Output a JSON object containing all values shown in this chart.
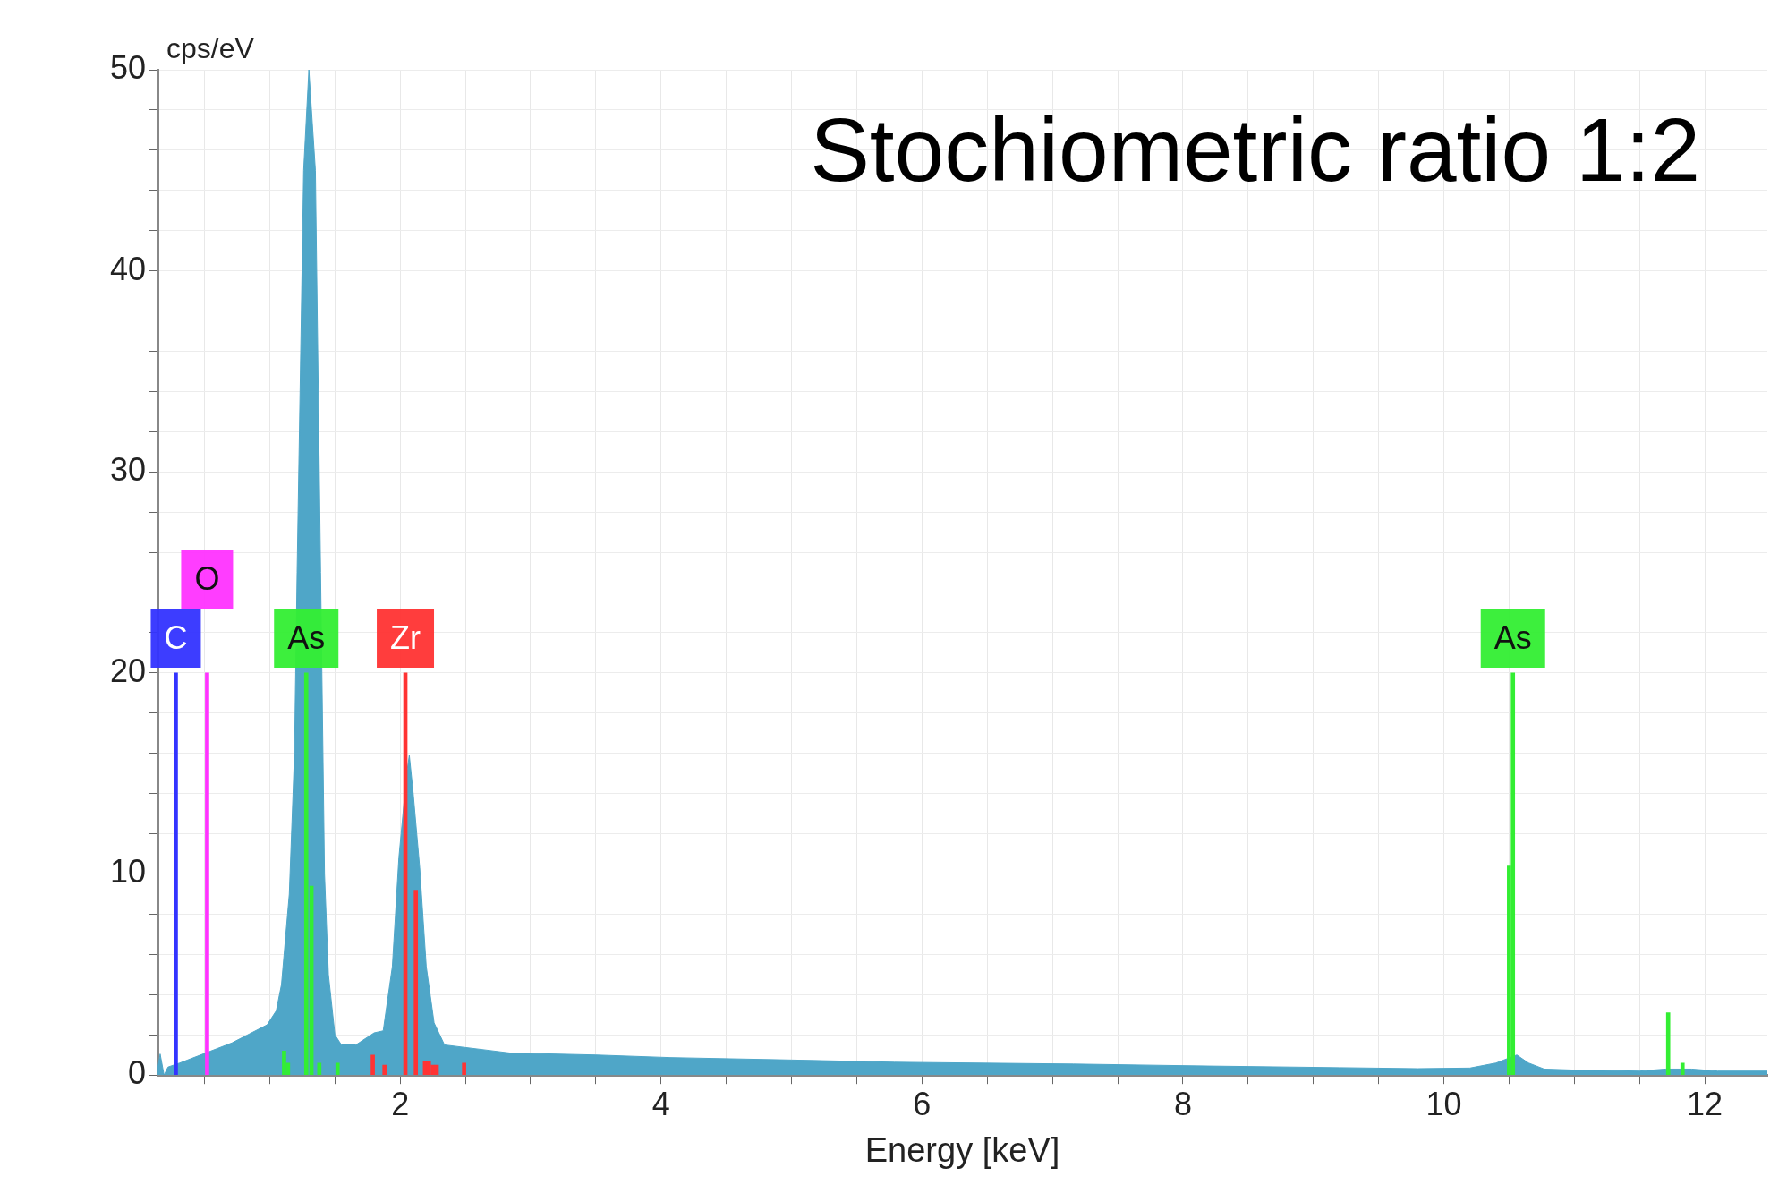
{
  "chart_data": {
    "type": "area",
    "title": "Stochiometric ratio 1:2",
    "xlabel": "Energy [keV]",
    "ylabel": "cps/eV",
    "xlim": [
      0.14,
      12.48
    ],
    "ylim": [
      0,
      50
    ],
    "xticks": [
      {
        "value": 0.5,
        "label": null
      },
      {
        "value": 1,
        "label": null
      },
      {
        "value": 1.5,
        "label": null
      },
      2,
      {
        "value": 2.5,
        "label": null
      },
      {
        "value": 3,
        "label": null
      },
      {
        "value": 3.5,
        "label": null
      },
      4,
      {
        "value": 4.5,
        "label": null
      },
      {
        "value": 5,
        "label": null
      },
      {
        "value": 5.5,
        "label": null
      },
      6,
      {
        "value": 6.5,
        "label": null
      },
      {
        "value": 7,
        "label": null
      },
      {
        "value": 7.5,
        "label": null
      },
      8,
      {
        "value": 8.5,
        "label": null
      },
      {
        "value": 9,
        "label": null
      },
      {
        "value": 9.5,
        "label": null
      },
      10,
      {
        "value": 10.5,
        "label": null
      },
      {
        "value": 11,
        "label": null
      },
      {
        "value": 11.5,
        "label": null
      },
      12
    ],
    "yticks": [
      0,
      {
        "value": 2,
        "label": null
      },
      {
        "value": 4,
        "label": null
      },
      {
        "value": 6,
        "label": null
      },
      {
        "value": 8,
        "label": null
      },
      10,
      {
        "value": 12,
        "label": null
      },
      {
        "value": 14,
        "label": null
      },
      {
        "value": 16,
        "label": null
      },
      {
        "value": 18,
        "label": null
      },
      20,
      {
        "value": 22,
        "label": null
      },
      {
        "value": 24,
        "label": null
      },
      {
        "value": 26,
        "label": null
      },
      {
        "value": 28,
        "label": null
      },
      30,
      {
        "value": 32,
        "label": null
      },
      {
        "value": 34,
        "label": null
      },
      {
        "value": 36,
        "label": null
      },
      {
        "value": 38,
        "label": null
      },
      40,
      {
        "value": 42,
        "label": null
      },
      {
        "value": 44,
        "label": null
      },
      {
        "value": 46,
        "label": null
      },
      {
        "value": 48,
        "label": null
      },
      50
    ],
    "grid": true,
    "legend": false,
    "series": [
      {
        "color": "#4fa6c8",
        "x": [
          0.14,
          0.16,
          0.19,
          0.22,
          0.31,
          0.49,
          0.71,
          0.98,
          1.05,
          1.09,
          1.15,
          1.19,
          1.21,
          1.26,
          1.3,
          1.35,
          1.39,
          1.42,
          1.45,
          1.5,
          1.55,
          1.66,
          1.8,
          1.87,
          1.94,
          1.99,
          2.05,
          2.07,
          2.1,
          2.15,
          2.2,
          2.26,
          2.34,
          2.84,
          3.5,
          4.07,
          5.0,
          5.79,
          7.16,
          8.2,
          9.2,
          9.8,
          10.2,
          10.4,
          10.56,
          10.65,
          10.77,
          11.0,
          11.5,
          11.7,
          11.9,
          12.1,
          12.48
        ],
        "values": [
          0.3,
          1.05,
          0,
          0.4,
          0.6,
          1.05,
          1.6,
          2.5,
          3.2,
          4.5,
          9,
          16,
          25,
          45,
          50,
          45,
          25,
          10,
          5,
          2,
          1.5,
          1.5,
          2.1,
          2.2,
          5.4,
          10.8,
          15,
          15.9,
          14,
          10.3,
          5.4,
          2.6,
          1.5,
          1.1,
          1.0,
          0.87,
          0.75,
          0.64,
          0.55,
          0.45,
          0.37,
          0.32,
          0.35,
          0.6,
          1.0,
          0.6,
          0.3,
          0.25,
          0.2,
          0.3,
          0.3,
          0.2,
          0.2
        ]
      },
      {
        "type": "bar",
        "color": "#3333ff",
        "x": [
          0.28
        ],
        "values": [
          20
        ]
      },
      {
        "type": "bar",
        "color": "#ff33ff",
        "x": [
          0.52
        ],
        "values": [
          20
        ]
      },
      {
        "type": "bar",
        "color": "#33ee33",
        "x": [
          1.11,
          1.14,
          1.28,
          1.32,
          1.38,
          1.52,
          10.5,
          10.53,
          11.72,
          11.83
        ],
        "values": [
          1.2,
          0.6,
          20,
          9.4,
          0.6,
          0.6,
          10.4,
          20,
          3.1,
          0.6
        ]
      },
      {
        "type": "bar",
        "color": "#ff3333",
        "x": [
          1.79,
          1.88,
          2.04,
          2.12,
          2.19,
          2.22,
          2.25,
          2.28,
          2.49
        ],
        "values": [
          1.0,
          0.5,
          20,
          9.2,
          0.7,
          0.7,
          0.5,
          0.5,
          0.6
        ]
      }
    ],
    "annotations": [
      {
        "text": "C",
        "x": 0.28,
        "y": 20
      },
      {
        "text": "O",
        "x": 0.52,
        "y": 20
      },
      {
        "text": "As",
        "x": 1.28,
        "y": 20
      },
      {
        "text": "Zr",
        "x": 2.04,
        "y": 20
      },
      {
        "text": "As",
        "x": 10.53,
        "y": 20
      }
    ]
  }
}
